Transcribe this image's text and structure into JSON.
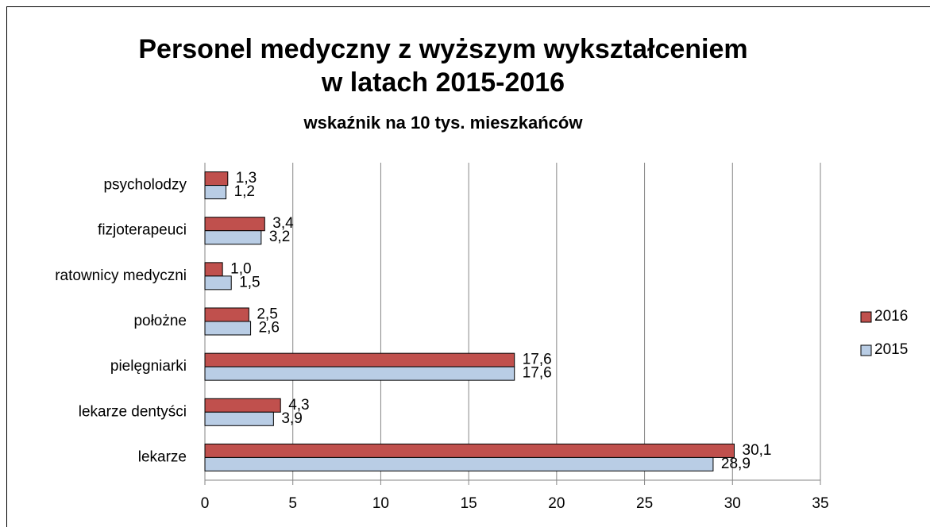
{
  "chart_data": {
    "type": "hbar",
    "title": [
      "Personel medyczny z wyższym wykształceniem",
      "w latach 2015-2016"
    ],
    "subtitle": "wskaźnik na 10 tys. mieszkańców",
    "categories": [
      "lekarze",
      "lekarze dentyści",
      "pielęgniarki",
      "położne",
      "ratownicy medyczni",
      "fizjoterapeuci",
      "psycholodzy"
    ],
    "series": [
      {
        "name": "2016",
        "color": "#c0504d",
        "values": [
          30.1,
          4.3,
          17.6,
          2.5,
          1.0,
          3.4,
          1.3
        ],
        "value_labels": [
          "30,1",
          "4,3",
          "17,6",
          "2,5",
          "1,0",
          "3,4",
          "1,3"
        ]
      },
      {
        "name": "2015",
        "color": "#b9cde5",
        "values": [
          28.9,
          3.9,
          17.6,
          2.6,
          1.5,
          3.2,
          1.2
        ],
        "value_labels": [
          "28,9",
          "3,9",
          "17,6",
          "2,6",
          "1,5",
          "3,2",
          "1,2"
        ]
      }
    ],
    "xlim": [
      0,
      35
    ],
    "xticks": [
      0,
      5,
      10,
      15,
      20,
      25,
      30,
      35
    ],
    "grid": true,
    "legend": "right"
  }
}
